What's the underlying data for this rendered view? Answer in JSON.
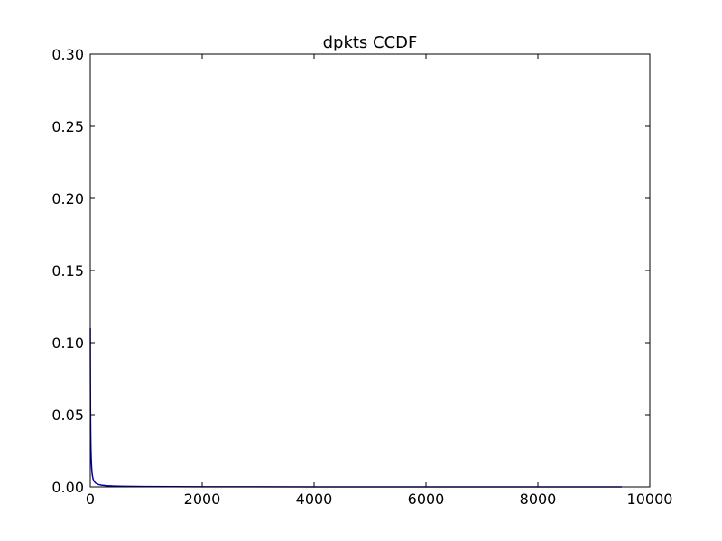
{
  "chart_data": {
    "type": "line",
    "title": "dpkts CCDF",
    "xlabel": "",
    "ylabel": "",
    "xlim": [
      0,
      10000
    ],
    "ylim": [
      0,
      0.3
    ],
    "x_ticks": [
      0,
      2000,
      4000,
      6000,
      8000,
      10000
    ],
    "x_tick_labels": [
      "0",
      "2000",
      "4000",
      "6000",
      "8000",
      "10000"
    ],
    "y_ticks": [
      0.0,
      0.05,
      0.1,
      0.15,
      0.2,
      0.25,
      0.3
    ],
    "y_tick_labels": [
      "0.00",
      "0.05",
      "0.10",
      "0.15",
      "0.20",
      "0.25",
      "0.30"
    ],
    "grid": false,
    "legend": "none",
    "series": [
      {
        "color": "#0000b3",
        "x": [
          1,
          2,
          3,
          5,
          8,
          12,
          18,
          25,
          35,
          50,
          70,
          100,
          150,
          200,
          300,
          400,
          600,
          800,
          1000,
          1500,
          2000,
          3000,
          4000,
          5000,
          6000,
          7000,
          8000,
          9000,
          9500
        ],
        "y": [
          0.11,
          0.085,
          0.07,
          0.052,
          0.038,
          0.027,
          0.019,
          0.013,
          0.0085,
          0.0055,
          0.0037,
          0.0025,
          0.0016,
          0.0012,
          0.0008,
          0.0006,
          0.0004,
          0.0003,
          0.00025,
          0.00015,
          0.0001,
          6e-05,
          4e-05,
          3e-05,
          2e-05,
          2e-05,
          1e-05,
          1e-05,
          0.0
        ]
      }
    ]
  }
}
